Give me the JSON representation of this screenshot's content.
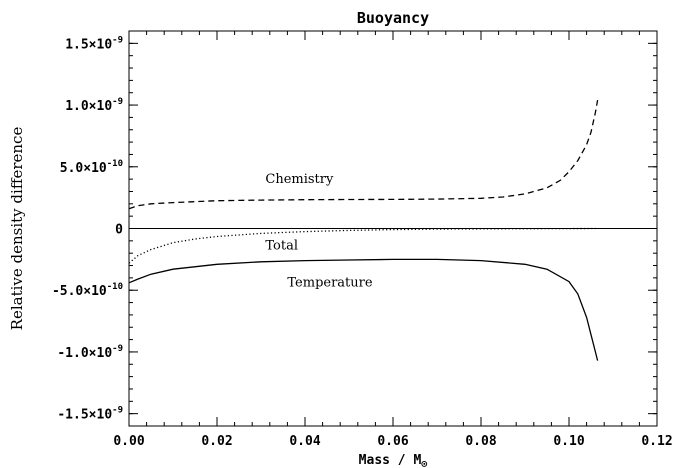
{
  "chart_data": {
    "type": "line",
    "title": "Buoyancy",
    "xlabel": "Mass / M",
    "xlabel_subscript": "⊙",
    "ylabel": "Relative density difference",
    "xlim": [
      0.0,
      0.12
    ],
    "ylim": [
      -1.6e-09,
      1.6e-09
    ],
    "x_ticks": [
      0.0,
      0.02,
      0.04,
      0.06,
      0.08,
      0.1,
      0.12
    ],
    "x_tick_labels": [
      "0.00",
      "0.02",
      "0.04",
      "0.06",
      "0.08",
      "0.10",
      "0.12"
    ],
    "y_ticks": [
      {
        "value": 1.5e-09,
        "mant": "1.5×10",
        "exp": "-9"
      },
      {
        "value": 1e-09,
        "mant": "1.0×10",
        "exp": "-9"
      },
      {
        "value": 5e-10,
        "mant": "5.0×10",
        "exp": "-10"
      },
      {
        "value": 0,
        "mant": "0",
        "exp": ""
      },
      {
        "value": -5e-10,
        "mant": "-5.0×10",
        "exp": "-10"
      },
      {
        "value": -1e-09,
        "mant": "-1.0×10",
        "exp": "-9"
      },
      {
        "value": -1.5e-09,
        "mant": "-1.5×10",
        "exp": "-9"
      }
    ],
    "zero_line": true,
    "grid": false,
    "legend": "none",
    "series": [
      {
        "name": "Chemistry",
        "style": "dashed",
        "x": [
          0.0,
          0.002,
          0.005,
          0.01,
          0.02,
          0.03,
          0.04,
          0.05,
          0.06,
          0.07,
          0.08,
          0.085,
          0.09,
          0.095,
          0.098,
          0.1,
          0.102,
          0.104,
          0.105,
          0.106,
          0.1065
        ],
        "y": [
          1.6e-10,
          1.85e-10,
          2e-10,
          2.1e-10,
          2.25e-10,
          2.3e-10,
          2.33e-10,
          2.35e-10,
          2.36e-10,
          2.38e-10,
          2.45e-10,
          2.55e-10,
          2.8e-10,
          3.3e-10,
          3.9e-10,
          4.6e-10,
          5.5e-10,
          6.8e-10,
          7.8e-10,
          9.4e-10,
          1.04e-09
        ]
      },
      {
        "name": "Total",
        "style": "dotted",
        "x": [
          0.0,
          0.002,
          0.005,
          0.01,
          0.015,
          0.02,
          0.03,
          0.04,
          0.05,
          0.06,
          0.07,
          0.08,
          0.09,
          0.1,
          0.1065
        ],
        "y": [
          -2.8e-10,
          -2.2e-10,
          -1.7e-10,
          -1.15e-10,
          -8.5e-11,
          -6.5e-11,
          -4e-11,
          -2.5e-11,
          -1.5e-11,
          -9e-12,
          -5e-12,
          -3e-12,
          -2e-12,
          -1e-12,
          0
        ]
      },
      {
        "name": "Temperature",
        "style": "solid",
        "x": [
          0.0,
          0.002,
          0.005,
          0.01,
          0.02,
          0.03,
          0.04,
          0.05,
          0.06,
          0.07,
          0.08,
          0.09,
          0.095,
          0.1,
          0.102,
          0.104,
          0.105,
          0.106,
          0.1065
        ],
        "y": [
          -4.4e-10,
          -4.1e-10,
          -3.7e-10,
          -3.3e-10,
          -2.9e-10,
          -2.7e-10,
          -2.6e-10,
          -2.55e-10,
          -2.5e-10,
          -2.5e-10,
          -2.6e-10,
          -2.9e-10,
          -3.3e-10,
          -4.3e-10,
          -5.3e-10,
          -7.2e-10,
          -8.6e-10,
          -1e-09,
          -1.07e-09
        ]
      }
    ],
    "annotations": [
      {
        "text": "Chemistry",
        "x": 0.031,
        "y": 3.7e-10
      },
      {
        "text": "Total",
        "x": 0.031,
        "y": -1.7e-10
      },
      {
        "text": "Temperature",
        "x": 0.036,
        "y": -4.7e-10
      }
    ]
  }
}
